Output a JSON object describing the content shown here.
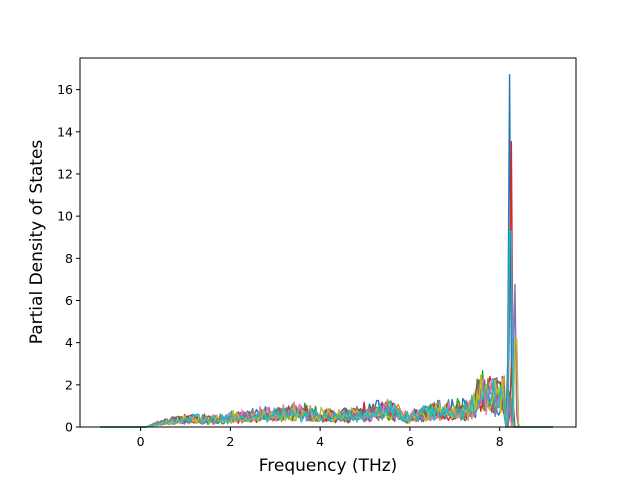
{
  "chart_data": {
    "type": "line",
    "title": "",
    "xlabel": "Frequency (THz)",
    "ylabel": "Partial Density of States",
    "xlim": [
      -1.35,
      9.7
    ],
    "ylim": [
      0,
      17.5
    ],
    "xticks": [
      0,
      2,
      4,
      6,
      8
    ],
    "yticks": [
      0,
      2,
      4,
      6,
      8,
      10,
      12,
      14,
      16
    ],
    "grid": false,
    "legend": "none",
    "series_count": 10,
    "series_colors": [
      "#1f77b4",
      "#ff7f0e",
      "#2ca02c",
      "#d62728",
      "#9467bd",
      "#8c564b",
      "#e377c2",
      "#7f7f7f",
      "#bcbd22",
      "#17becf"
    ],
    "envelope": {
      "x": [
        -0.9,
        0.0,
        0.2,
        0.5,
        1.0,
        1.5,
        2.0,
        2.5,
        3.0,
        3.5,
        4.0,
        4.5,
        5.0,
        5.5,
        6.0,
        6.5,
        7.0,
        7.3,
        7.6,
        7.9,
        8.1,
        8.2,
        8.25,
        8.3,
        8.35,
        8.4,
        9.2
      ],
      "y": [
        0.0,
        0.0,
        0.1,
        0.4,
        0.7,
        0.6,
        0.8,
        0.9,
        1.2,
        1.3,
        1.0,
        1.0,
        1.2,
        1.5,
        0.8,
        1.4,
        1.3,
        1.5,
        2.8,
        2.4,
        2.5,
        16.7,
        15.6,
        7.5,
        6.3,
        0.2,
        0.0
      ]
    },
    "peaks": [
      {
        "x": 8.22,
        "y": 16.7
      },
      {
        "x": 8.25,
        "y": 15.6
      },
      {
        "x": 8.35,
        "y": 7.5
      },
      {
        "x": 8.37,
        "y": 6.3
      },
      {
        "x": 7.62,
        "y": 2.8
      },
      {
        "x": 7.83,
        "y": 2.5
      },
      {
        "x": 5.35,
        "y": 1.5
      }
    ]
  }
}
